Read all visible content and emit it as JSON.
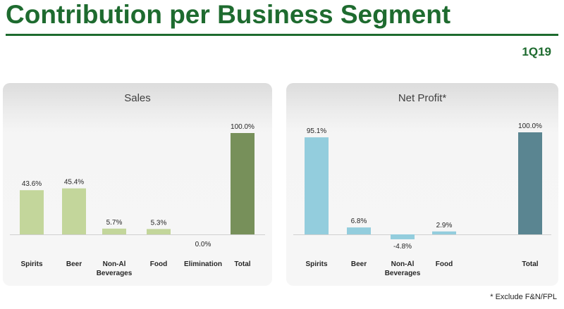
{
  "header": {
    "title": "Contribution per Business Segment",
    "period": "1Q19"
  },
  "footnote": "* Exclude F&N/FPL",
  "colors": {
    "brand_green": "#1e6b2f",
    "sales_bar": "#c3d69b",
    "sales_total": "#77905a",
    "profit_bar": "#93cddd",
    "profit_total": "#5a8591"
  },
  "chart_data": [
    {
      "type": "bar",
      "title": "Sales",
      "categories": [
        "Spirits",
        "Beer",
        "Non-Al Beverages",
        "Food",
        "Elimination",
        "Total"
      ],
      "category_lines": [
        [
          "Spirits"
        ],
        [
          "Beer"
        ],
        [
          "Non-Al",
          "Beverages"
        ],
        [
          "Food"
        ],
        [
          "Elimination"
        ],
        [
          "Total"
        ]
      ],
      "values": [
        43.6,
        45.4,
        5.7,
        5.3,
        0.0,
        100.0
      ],
      "labels": [
        "43.6%",
        "45.4%",
        "5.7%",
        "5.3%",
        "0.0%",
        "100.0%"
      ],
      "total_index": 5,
      "ylim": [
        0,
        100
      ],
      "xlabel": "",
      "ylabel": "",
      "grid": false,
      "legend": "none"
    },
    {
      "type": "bar",
      "title": "Net Profit*",
      "categories": [
        "Spirits",
        "Beer",
        "Non-Al Beverages",
        "Food",
        "",
        "Total"
      ],
      "category_lines": [
        [
          "Spirits"
        ],
        [
          "Beer"
        ],
        [
          "Non-Al",
          "Beverages"
        ],
        [
          "Food"
        ],
        [],
        [
          "Total"
        ]
      ],
      "values": [
        95.1,
        6.8,
        -4.8,
        2.9,
        null,
        100.0
      ],
      "labels": [
        "95.1%",
        "6.8%",
        "-4.8%",
        "2.9%",
        "",
        "100.0%"
      ],
      "total_index": 5,
      "ylim": [
        -10,
        100
      ],
      "xlabel": "",
      "ylabel": "",
      "grid": false,
      "legend": "none"
    }
  ]
}
